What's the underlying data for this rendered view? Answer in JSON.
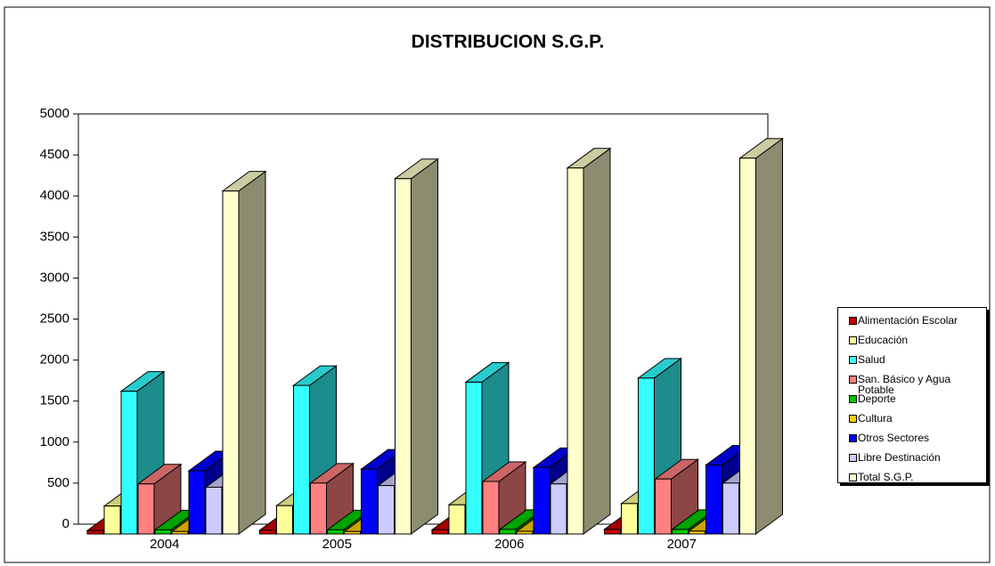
{
  "chart_data": {
    "type": "bar3d",
    "title": "DISTRIBUCION S.G.P.",
    "categories": [
      "2004",
      "2005",
      "2006",
      "2007"
    ],
    "ylim": [
      0,
      5000
    ],
    "yticks": [
      0,
      500,
      1000,
      1500,
      2000,
      2500,
      3000,
      3500,
      4000,
      4500,
      5000
    ],
    "legend": "right",
    "series": [
      {
        "name": "Alimentación Escolar",
        "color": "#cc0000",
        "values": [
          40,
          45,
          50,
          55
        ]
      },
      {
        "name": "Educación",
        "color": "#ffff99",
        "values": [
          340,
          345,
          355,
          370
        ]
      },
      {
        "name": "Salud",
        "color": "#33ffff",
        "values": [
          1740,
          1810,
          1850,
          1900
        ]
      },
      {
        "name": "San. Básico y Agua Potable",
        "color": "#ff8080",
        "values": [
          610,
          620,
          640,
          670
        ]
      },
      {
        "name": "Deporte",
        "color": "#00cc00",
        "values": [
          50,
          50,
          55,
          55
        ]
      },
      {
        "name": "Cultura",
        "color": "#ffcc00",
        "values": [
          30,
          30,
          32,
          35
        ]
      },
      {
        "name": "Otros Sectores",
        "color": "#0000ff",
        "values": [
          770,
          790,
          810,
          840
        ]
      },
      {
        "name": "Libre Destinación",
        "color": "#ccccff",
        "values": [
          570,
          590,
          610,
          620
        ]
      },
      {
        "name": "Total S.G.P.",
        "color": "#ffffcc",
        "values": [
          4180,
          4330,
          4460,
          4580
        ]
      }
    ]
  }
}
